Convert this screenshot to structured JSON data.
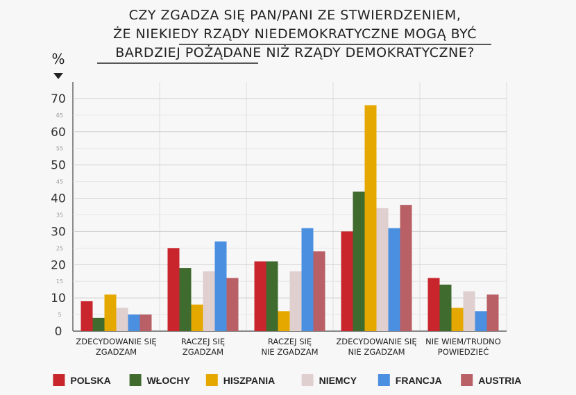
{
  "chart_data": {
    "type": "bar",
    "title_lines": [
      "CZY ZGADZA SIĘ PAN/PANI ZE STWIERDZENIEM,",
      "ŻE NIEKIEDY RZĄDY NIEDEMOKRATYCZNE MOGĄ BYĆ",
      "BARDZIEJ POŻĄDANE NIŻ RZĄDY DEMOKRATYCZNE?"
    ],
    "ylabel": "%",
    "ylim": [
      0,
      75
    ],
    "yticks_major": [
      0,
      10,
      20,
      30,
      40,
      50,
      60,
      70
    ],
    "yticks_minor": [
      5,
      15,
      25,
      35,
      45,
      55,
      65
    ],
    "grid": true,
    "legend_position": "bottom",
    "categories": [
      [
        "ZDECYDOWANIE SIĘ",
        "ZGADZAM"
      ],
      [
        "RACZEJ SIĘ",
        "ZGADZAM"
      ],
      [
        "RACZEJ SIĘ",
        "NIE ZGADZAM"
      ],
      [
        "ZDECYDOWANIE SIĘ",
        "NIE ZGADZAM"
      ],
      [
        "NIE WIEM/TRUDNO",
        "POWIEDZIEĆ"
      ]
    ],
    "series": [
      {
        "name": "POLSKA",
        "color": "#c8262c",
        "values": [
          9,
          25,
          21,
          30,
          16
        ]
      },
      {
        "name": "WŁOCHY",
        "color": "#3f6b2e",
        "values": [
          4,
          19,
          21,
          42,
          14
        ]
      },
      {
        "name": "HISZPANIA",
        "color": "#e5a800",
        "values": [
          11,
          8,
          6,
          68,
          7
        ]
      },
      {
        "name": "NIEMCY",
        "color": "#dfcfcf",
        "values": [
          7,
          18,
          18,
          37,
          12
        ]
      },
      {
        "name": "FRANCJA",
        "color": "#4a8fe0",
        "values": [
          5,
          27,
          31,
          31,
          6
        ]
      },
      {
        "name": "AUSTRIA",
        "color": "#b86066",
        "values": [
          5,
          16,
          24,
          38,
          11
        ]
      }
    ]
  }
}
